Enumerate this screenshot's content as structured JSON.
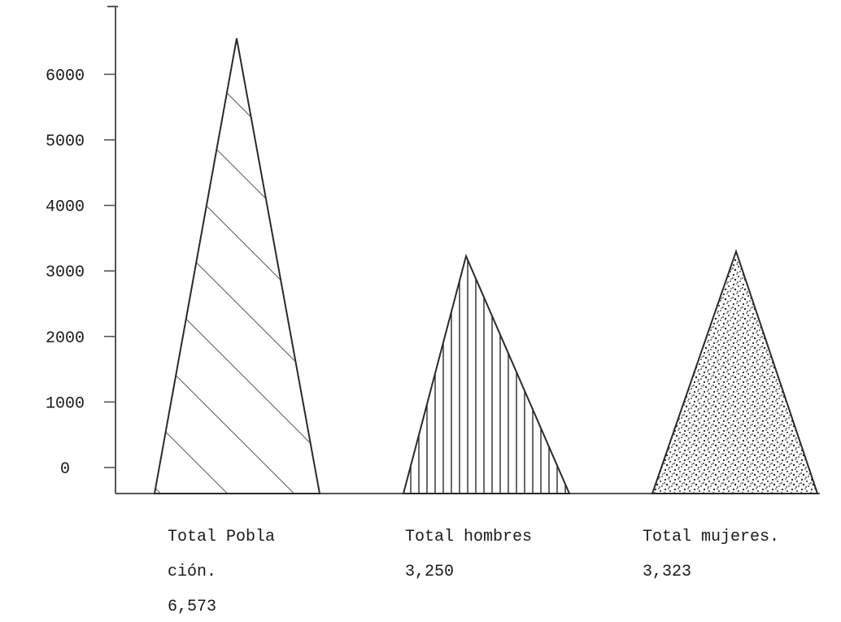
{
  "chart_data": {
    "type": "bar",
    "shape": "triangle",
    "title": "",
    "xlabel": "",
    "ylabel": "",
    "ylim": [
      0,
      6800
    ],
    "yticks": [
      0,
      1000,
      2000,
      3000,
      4000,
      5000,
      6000
    ],
    "ytick_labels": [
      "0",
      "1000",
      "2000",
      "3000",
      "4000",
      "5000",
      "6000"
    ],
    "categories": [
      {
        "label_lines": [
          "Total Pobla",
          "ción.",
          "6,573"
        ],
        "value_label": "6,573",
        "value": 6573,
        "fill": "diagonal-hatch"
      },
      {
        "label_lines": [
          "Total hombres",
          "3,250"
        ],
        "value_label": "3,250",
        "value": 3250,
        "fill": "vertical-hatch"
      },
      {
        "label_lines": [
          "Total mujeres.",
          "3,323"
        ],
        "value_label": "3,323",
        "value": 3323,
        "fill": "stipple"
      }
    ],
    "values": [
      6573,
      3250,
      3323
    ],
    "grid": false,
    "legend": "none",
    "colors": {
      "ink": "#2a2a2a",
      "axis": "#555555",
      "background": "#ffffff"
    }
  }
}
